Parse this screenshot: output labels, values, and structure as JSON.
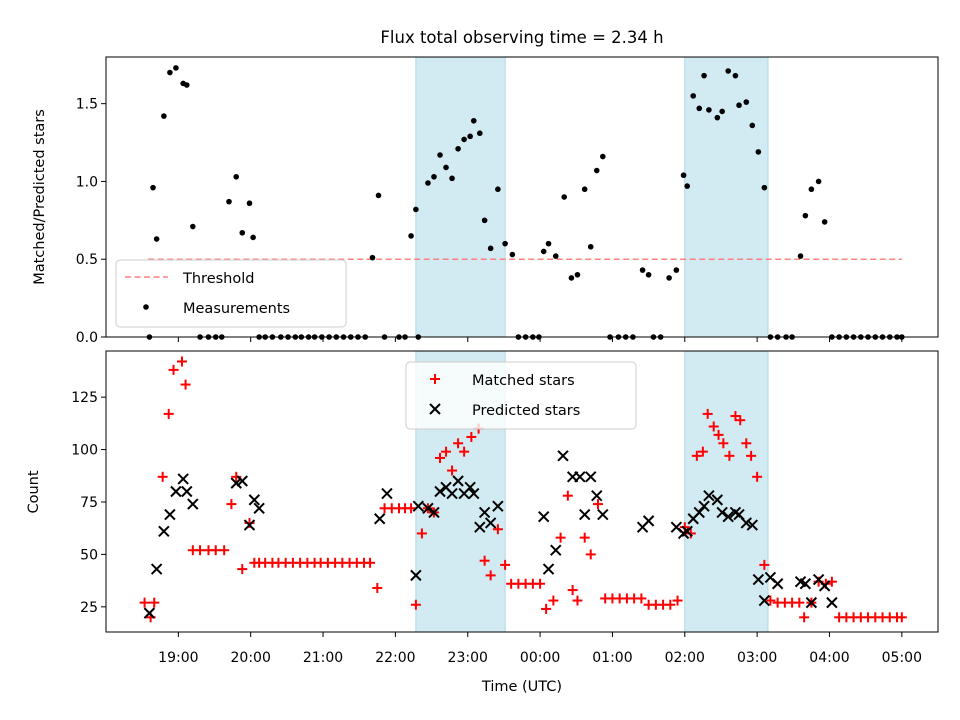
{
  "figure_title": "Flux total observing time = 2.34 h",
  "colors": {
    "band": "#add8e6",
    "threshold": "#ff8080",
    "measurements": "#000000",
    "matched": "#ff0000",
    "predicted": "#000000"
  },
  "chart_data": [
    {
      "type": "scatter",
      "ylabel": "Matched/Predicted stars",
      "ylim": [
        0,
        1.8
      ],
      "yticks": [
        0.0,
        0.5,
        1.0,
        1.5
      ],
      "yticklabels": [
        "0.0",
        "0.5",
        "1.0",
        "1.5"
      ],
      "grid": false,
      "legend_position": "lower-left",
      "shaded_bands": [
        {
          "start": "22:17",
          "end": "23:31"
        },
        {
          "start": "02:00",
          "end": "03:09"
        }
      ],
      "threshold": {
        "name": "Threshold",
        "value": 0.5,
        "start": "18:35",
        "end": "05:00",
        "style": "dashed"
      },
      "series": [
        {
          "name": "Measurements",
          "x": [
            "18:36",
            "18:39",
            "18:42",
            "18:48",
            "18:53",
            "18:58",
            "19:04",
            "19:07",
            "19:12",
            "19:18",
            "19:25",
            "19:31",
            "19:36",
            "19:42",
            "19:48",
            "19:53",
            "19:59",
            "20:02",
            "20:07",
            "20:12",
            "20:18",
            "20:25",
            "20:31",
            "20:37",
            "20:42",
            "20:48",
            "20:53",
            "20:59",
            "21:05",
            "21:11",
            "21:17",
            "21:23",
            "21:29",
            "21:35",
            "21:41",
            "21:46",
            "21:51",
            "22:03",
            "22:08",
            "22:13",
            "22:17",
            "22:19",
            "22:27",
            "22:32",
            "22:37",
            "22:42",
            "22:47",
            "22:52",
            "22:57",
            "23:02",
            "23:05",
            "23:10",
            "23:14",
            "23:19",
            "23:25",
            "23:31",
            "23:37",
            "23:42",
            "23:48",
            "23:54",
            "23:59",
            "00:03",
            "00:07",
            "00:13",
            "00:20",
            "00:26",
            "00:31",
            "00:37",
            "00:42",
            "00:47",
            "00:52",
            "00:58",
            "01:05",
            "01:11",
            "01:17",
            "01:25",
            "01:30",
            "01:34",
            "01:40",
            "01:47",
            "01:53",
            "01:59",
            "02:02",
            "02:07",
            "02:12",
            "02:16",
            "02:20",
            "02:27",
            "02:31",
            "02:36",
            "02:42",
            "02:45",
            "02:51",
            "02:56",
            "03:01",
            "03:06",
            "03:11",
            "03:17",
            "03:24",
            "03:29",
            "03:36",
            "03:40",
            "03:45",
            "03:51",
            "03:56",
            "04:02",
            "04:08",
            "04:14",
            "04:20",
            "04:26",
            "04:32",
            "04:38",
            "04:44",
            "04:50",
            "04:56",
            "05:00"
          ],
          "y": [
            0.0,
            0.96,
            0.63,
            1.42,
            1.7,
            1.73,
            1.63,
            1.62,
            0.71,
            0.0,
            0.0,
            0.0,
            0.0,
            0.87,
            1.03,
            0.67,
            0.86,
            0.64,
            0.0,
            0.0,
            0.0,
            0.0,
            0.0,
            0.0,
            0.0,
            0.0,
            0.0,
            0.0,
            0.0,
            0.0,
            0.0,
            0.0,
            0.0,
            0.0,
            0.51,
            0.91,
            0.0,
            0.0,
            0.0,
            0.65,
            0.82,
            0.0,
            0.99,
            1.03,
            1.17,
            1.09,
            1.02,
            1.21,
            1.27,
            1.29,
            1.39,
            1.31,
            0.75,
            0.57,
            0.95,
            0.6,
            0.53,
            0.0,
            0.0,
            0.0,
            0.0,
            0.55,
            0.6,
            0.52,
            0.9,
            0.38,
            0.4,
            0.95,
            0.58,
            1.07,
            1.16,
            0.0,
            0.0,
            0.0,
            0.0,
            0.43,
            0.4,
            0.0,
            0.0,
            0.38,
            0.43,
            1.04,
            0.97,
            1.55,
            1.47,
            1.68,
            1.46,
            1.41,
            1.45,
            1.71,
            1.68,
            1.49,
            1.51,
            1.36,
            1.19,
            0.96,
            0.0,
            0.0,
            0.0,
            0.0,
            0.52,
            0.78,
            0.95,
            1.0,
            0.74,
            0.0,
            0.0,
            0.0,
            0.0,
            0.0,
            0.0,
            0.0,
            0.0,
            0.0,
            0.0,
            0.0
          ]
        }
      ]
    },
    {
      "type": "scatter",
      "xlabel": "Time (UTC)",
      "ylabel": "Count",
      "ylim": [
        13,
        147
      ],
      "yticks": [
        25,
        50,
        75,
        100,
        125
      ],
      "yticklabels": [
        "25",
        "50",
        "75",
        "100",
        "125"
      ],
      "xlim": [
        "18:00",
        "05:30"
      ],
      "xticks": [
        "19:00",
        "20:00",
        "21:00",
        "22:00",
        "23:00",
        "00:00",
        "01:00",
        "02:00",
        "03:00",
        "04:00",
        "05:00"
      ],
      "grid": false,
      "legend_position": "upper-center",
      "series": [
        {
          "name": "Matched stars",
          "x": [
            "18:32",
            "18:37",
            "18:40",
            "18:47",
            "18:52",
            "18:56",
            "19:03",
            "19:06",
            "19:12",
            "19:18",
            "19:25",
            "19:31",
            "19:38",
            "19:44",
            "19:48",
            "19:53",
            "19:59",
            "20:03",
            "20:07",
            "20:12",
            "20:18",
            "20:23",
            "20:29",
            "20:35",
            "20:41",
            "20:47",
            "20:53",
            "20:58",
            "21:04",
            "21:10",
            "21:16",
            "21:22",
            "21:28",
            "21:34",
            "21:39",
            "21:45",
            "21:51",
            "21:57",
            "22:03",
            "22:08",
            "22:13",
            "22:17",
            "22:22",
            "22:27",
            "22:32",
            "22:37",
            "22:42",
            "22:47",
            "22:52",
            "22:57",
            "23:03",
            "23:09",
            "23:14",
            "23:19",
            "23:25",
            "23:31",
            "23:36",
            "23:42",
            "23:48",
            "23:54",
            "00:00",
            "00:05",
            "00:11",
            "00:17",
            "00:23",
            "00:27",
            "00:31",
            "00:37",
            "00:42",
            "00:48",
            "00:54",
            "01:00",
            "01:06",
            "01:12",
            "01:18",
            "01:24",
            "01:30",
            "01:36",
            "01:42",
            "01:48",
            "01:54",
            "02:00",
            "02:05",
            "02:10",
            "02:15",
            "02:19",
            "02:24",
            "02:28",
            "02:32",
            "02:37",
            "02:42",
            "02:46",
            "02:51",
            "02:55",
            "03:00",
            "03:06",
            "03:11",
            "03:17",
            "03:23",
            "03:29",
            "03:35",
            "03:39",
            "03:45",
            "03:51",
            "03:57",
            "04:02",
            "04:08",
            "04:14",
            "04:20",
            "04:26",
            "04:32",
            "04:38",
            "04:44",
            "04:50",
            "04:56",
            "05:00"
          ],
          "y": [
            27,
            20,
            27,
            87,
            117,
            138,
            142,
            131,
            52,
            52,
            52,
            52,
            52,
            74,
            87,
            43,
            65,
            46,
            46,
            46,
            46,
            46,
            46,
            46,
            46,
            46,
            46,
            46,
            46,
            46,
            46,
            46,
            46,
            46,
            46,
            34,
            72,
            72,
            72,
            72,
            72,
            26,
            60,
            72,
            70,
            96,
            99,
            90,
            103,
            99,
            106,
            110,
            47,
            40,
            62,
            45,
            36,
            36,
            36,
            36,
            36,
            24,
            28,
            58,
            78,
            33,
            28,
            58,
            50,
            74,
            29,
            29,
            29,
            29,
            29,
            29,
            26,
            26,
            26,
            26,
            28,
            63,
            60,
            97,
            99,
            117,
            111,
            107,
            103,
            97,
            116,
            114,
            103,
            97,
            87,
            45,
            28,
            27,
            27,
            27,
            27,
            20,
            27,
            37,
            36,
            37,
            20,
            20,
            20,
            20,
            20,
            20,
            20,
            20,
            20,
            20
          ]
        },
        {
          "name": "Predicted stars",
          "x": [
            "18:36",
            "18:42",
            "18:48",
            "18:53",
            "18:58",
            "19:04",
            "19:07",
            "19:12",
            "19:48",
            "19:53",
            "19:59",
            "20:03",
            "20:07",
            "21:47",
            "21:53",
            "22:17",
            "22:19",
            "22:27",
            "22:32",
            "22:37",
            "22:42",
            "22:47",
            "22:52",
            "22:57",
            "23:02",
            "23:05",
            "23:10",
            "23:14",
            "23:19",
            "23:25",
            "00:03",
            "00:07",
            "00:13",
            "00:19",
            "00:27",
            "00:33",
            "00:37",
            "00:42",
            "00:47",
            "00:52",
            "01:25",
            "01:30",
            "01:53",
            "01:59",
            "02:02",
            "02:07",
            "02:12",
            "02:16",
            "02:20",
            "02:27",
            "02:31",
            "02:36",
            "02:42",
            "02:45",
            "02:51",
            "02:56",
            "03:01",
            "03:06",
            "03:11",
            "03:17",
            "03:36",
            "03:40",
            "03:45",
            "03:51",
            "03:56",
            "04:02"
          ],
          "y": [
            22,
            43,
            61,
            69,
            80,
            86,
            80,
            74,
            84,
            85,
            64,
            76,
            72,
            67,
            79,
            40,
            73,
            72,
            70,
            80,
            82,
            79,
            85,
            79,
            82,
            79,
            63,
            70,
            65,
            73,
            68,
            43,
            52,
            97,
            87,
            87,
            69,
            87,
            78,
            69,
            63,
            66,
            63,
            60,
            61,
            67,
            70,
            73,
            78,
            76,
            70,
            68,
            70,
            69,
            65,
            64,
            38,
            28,
            39,
            36,
            37,
            36,
            27,
            38,
            35,
            27
          ]
        }
      ]
    }
  ]
}
